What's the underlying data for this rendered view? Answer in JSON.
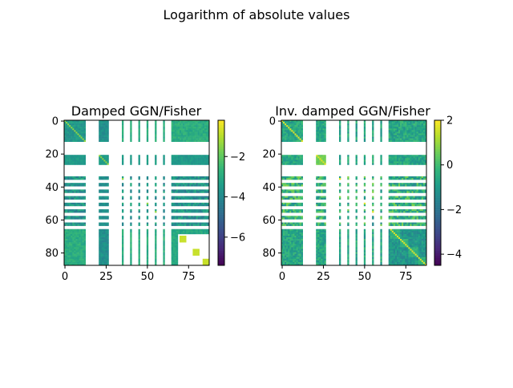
{
  "figure": {
    "title": "Logarithm of absolute values"
  },
  "chart_data": [
    {
      "type": "heatmap",
      "title": "Damped GGN/Fisher",
      "matrix_size": 88,
      "xticks": [
        0,
        25,
        50,
        75
      ],
      "yticks": [
        0,
        20,
        40,
        60,
        80
      ],
      "colormap": "viridis",
      "colorbar": {
        "range": [
          -7.4,
          -0.2
        ],
        "ticks": [
          -2,
          -4,
          -6
        ],
        "tick_labels": [
          "−2",
          "−4",
          "−6"
        ]
      },
      "nonzero_block_rows": [
        [
          0,
          13
        ],
        [
          21,
          27
        ],
        [
          34,
          36
        ],
        [
          38,
          40
        ],
        [
          42,
          44
        ],
        [
          46,
          48
        ],
        [
          50,
          52
        ],
        [
          54,
          56
        ],
        [
          58,
          60
        ],
        [
          62,
          64
        ],
        [
          66,
          88
        ]
      ],
      "nonzero_block_cols": [
        [
          0,
          13
        ],
        [
          21,
          27
        ],
        [
          35,
          36
        ],
        [
          40,
          41
        ],
        [
          45,
          46
        ],
        [
          50,
          51
        ],
        [
          55,
          56
        ],
        [
          60,
          61
        ],
        [
          65,
          88
        ]
      ],
      "bright_diagonal_blocks": [
        [
          70,
          74
        ],
        [
          78,
          82
        ],
        [
          84,
          88
        ]
      ]
    },
    {
      "type": "heatmap",
      "title": "Inv. damped GGN/Fisher",
      "matrix_size": 88,
      "xticks": [
        0,
        25,
        50,
        75
      ],
      "yticks": [
        0,
        20,
        40,
        60,
        80
      ],
      "colormap": "viridis",
      "colorbar": {
        "range": [
          -4.5,
          2.0
        ],
        "ticks": [
          2,
          0,
          -2,
          -4
        ],
        "tick_labels": [
          "2",
          "0",
          "−2",
          "−4"
        ]
      },
      "nonzero_block_rows": [
        [
          0,
          13
        ],
        [
          21,
          27
        ],
        [
          34,
          36
        ],
        [
          38,
          40
        ],
        [
          42,
          44
        ],
        [
          46,
          48
        ],
        [
          50,
          52
        ],
        [
          54,
          56
        ],
        [
          58,
          60
        ],
        [
          62,
          64
        ],
        [
          66,
          88
        ]
      ],
      "nonzero_block_cols": [
        [
          0,
          13
        ],
        [
          21,
          27
        ],
        [
          35,
          36
        ],
        [
          40,
          41
        ],
        [
          45,
          46
        ],
        [
          50,
          51
        ],
        [
          55,
          56
        ],
        [
          60,
          61
        ],
        [
          65,
          88
        ]
      ],
      "bright_diagonal": true
    }
  ]
}
